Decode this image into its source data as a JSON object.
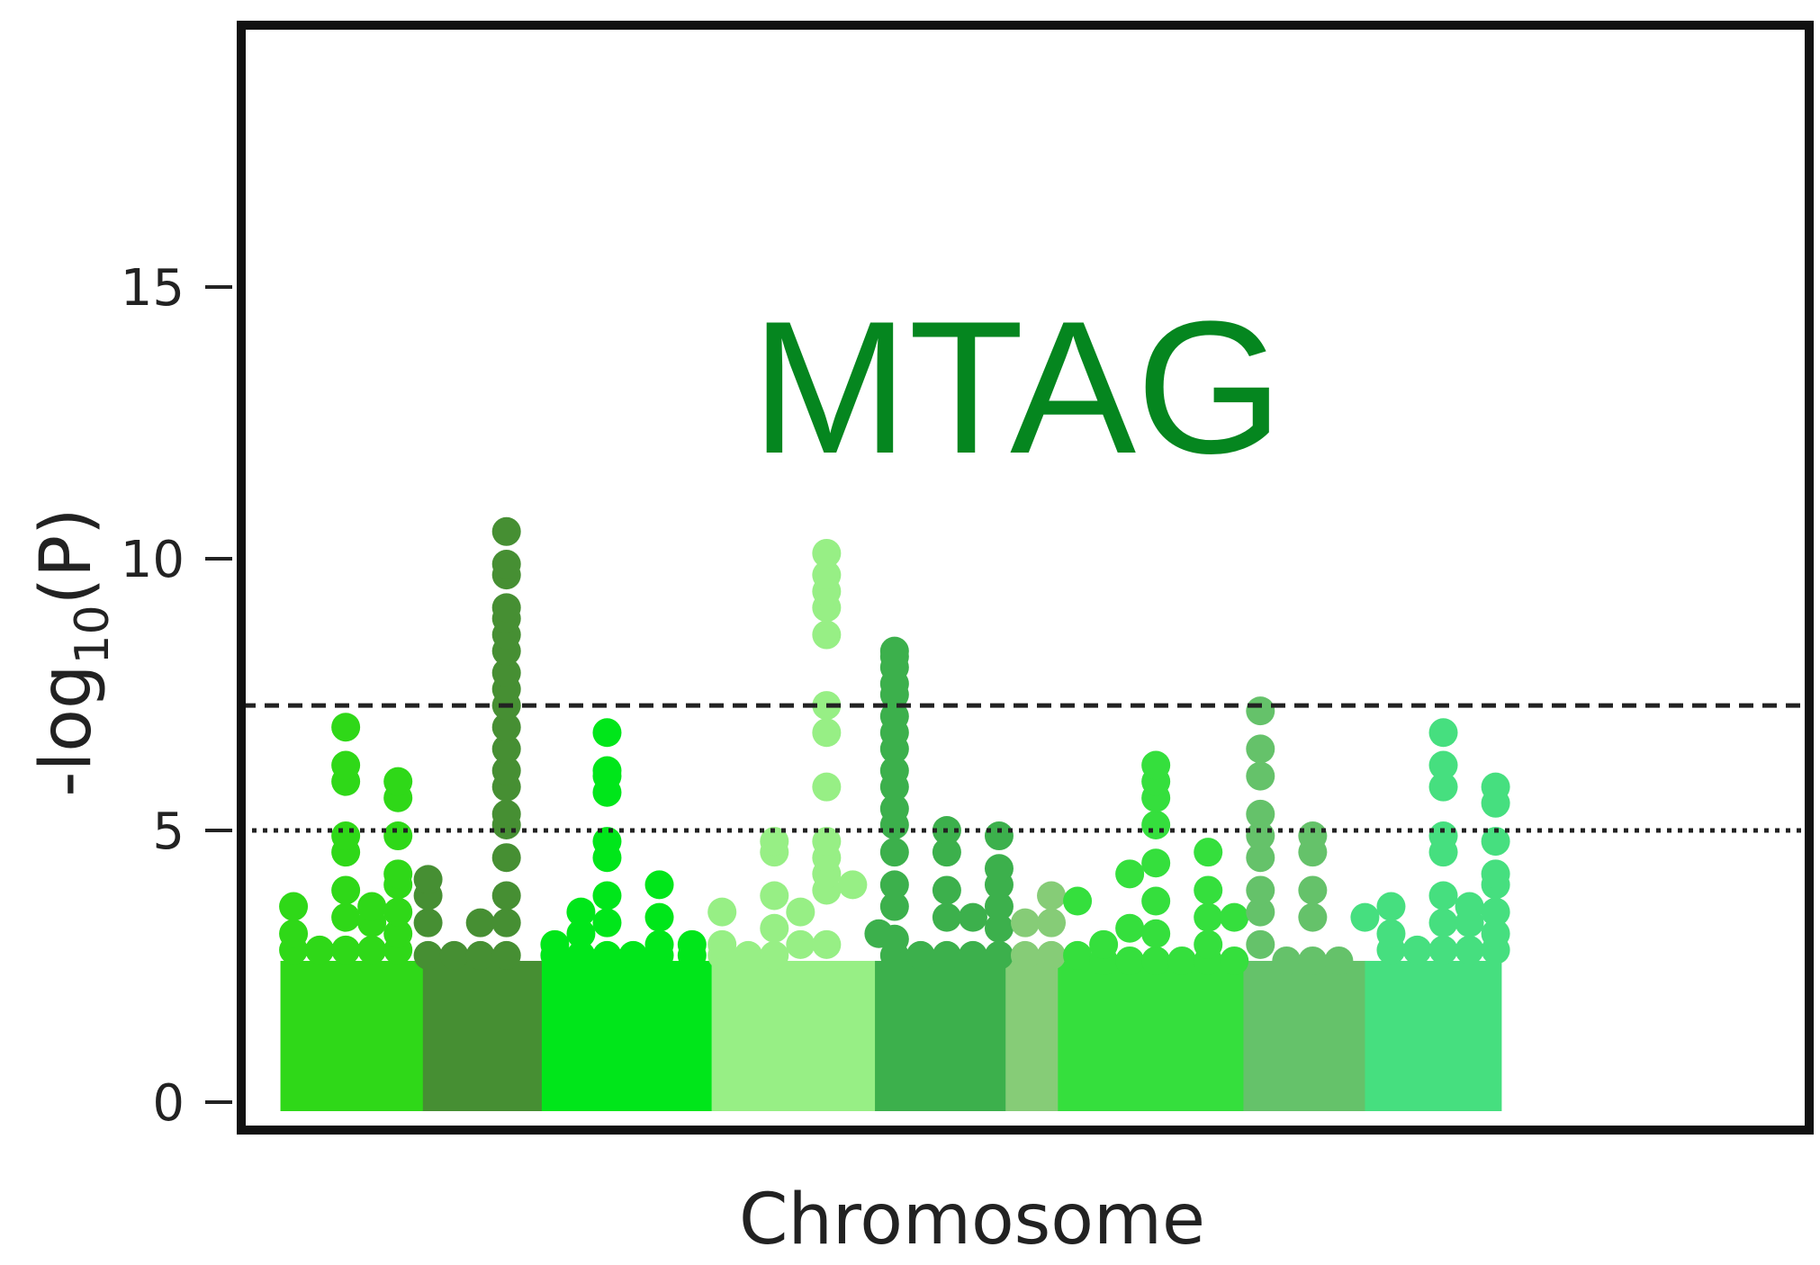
{
  "chart_data": {
    "type": "scatter",
    "title": "MTAG",
    "xlabel": "Chromosome",
    "ylabel": {
      "prefix": "-log",
      "subscript": "10",
      "suffix": "(P)"
    },
    "ylim": [
      0,
      19
    ],
    "yticks": [
      0,
      5,
      10,
      15
    ],
    "thresholds": [
      {
        "value": 7.3,
        "style": "dashed"
      },
      {
        "value": 5.0,
        "style": "dotted"
      }
    ],
    "legend": "none",
    "grid": false,
    "xlim": [
      0,
      12.0
    ],
    "block_top": 2.6,
    "blocks": [
      {
        "start": 0.3,
        "end": 1.39,
        "color": "#2fd818"
      },
      {
        "start": 1.39,
        "end": 2.3,
        "color": "#468f33"
      },
      {
        "start": 2.3,
        "end": 3.6,
        "color": "#00e61a"
      },
      {
        "start": 3.6,
        "end": 4.85,
        "color": "#97ef85"
      },
      {
        "start": 4.85,
        "end": 5.85,
        "color": "#3cb04c"
      },
      {
        "start": 5.85,
        "end": 6.25,
        "color": "#86cc77"
      },
      {
        "start": 6.25,
        "end": 7.67,
        "color": "#35df3d"
      },
      {
        "start": 7.67,
        "end": 8.6,
        "color": "#65c26a"
      },
      {
        "start": 8.6,
        "end": 9.64,
        "color": "#46df7f"
      }
    ],
    "points": [
      {
        "x": 0.4,
        "y": [
          2.8,
          3.1,
          3.6
        ]
      },
      {
        "x": 0.6,
        "y": [
          2.8
        ]
      },
      {
        "x": 0.8,
        "y": [
          2.8,
          3.4,
          3.9,
          4.6,
          4.9,
          5.9,
          6.2,
          6.9
        ]
      },
      {
        "x": 1.0,
        "y": [
          2.8,
          3.3,
          3.6
        ]
      },
      {
        "x": 1.2,
        "y": [
          2.8,
          3.1,
          3.5,
          4.0,
          4.2,
          4.9,
          5.6,
          5.9
        ]
      },
      {
        "x": 1.43,
        "y": [
          2.7,
          3.3,
          3.8,
          4.1
        ]
      },
      {
        "x": 1.63,
        "y": [
          2.7
        ]
      },
      {
        "x": 1.83,
        "y": [
          2.7,
          3.3
        ]
      },
      {
        "x": 2.03,
        "y": [
          2.7,
          3.3,
          3.8,
          4.5,
          5.1,
          5.3,
          5.8,
          6.1,
          6.5,
          6.9,
          7.3,
          7.6,
          7.9,
          8.3,
          8.6,
          8.9,
          9.1,
          9.7,
          9.9,
          10.5
        ]
      },
      {
        "x": 2.4,
        "y": [
          2.7,
          2.9
        ]
      },
      {
        "x": 2.6,
        "y": [
          2.7,
          3.1,
          3.5
        ]
      },
      {
        "x": 2.8,
        "y": [
          2.7,
          3.3,
          3.8,
          4.5,
          4.8,
          5.7,
          6.0,
          6.1,
          6.8
        ]
      },
      {
        "x": 3.0,
        "y": [
          2.7
        ]
      },
      {
        "x": 3.2,
        "y": [
          2.7,
          2.9,
          3.4,
          4.0
        ]
      },
      {
        "x": 3.45,
        "y": [
          2.7,
          2.9
        ]
      },
      {
        "x": 3.68,
        "y": [
          2.7,
          2.9,
          3.5
        ]
      },
      {
        "x": 3.88,
        "y": [
          2.7
        ]
      },
      {
        "x": 4.08,
        "y": [
          2.7,
          3.2,
          3.8,
          4.6,
          4.8
        ]
      },
      {
        "x": 4.28,
        "y": [
          2.9,
          3.5
        ]
      },
      {
        "x": 4.48,
        "y": [
          2.9,
          3.9,
          4.2,
          4.5,
          4.8,
          5.8,
          6.8,
          7.3,
          8.6,
          9.1,
          9.4,
          9.7,
          10.1
        ]
      },
      {
        "x": 4.68,
        "y": [
          4.0
        ]
      },
      {
        "x": 4.88,
        "y": [
          3.1
        ]
      },
      {
        "x": 5.0,
        "y": [
          2.7,
          3.0,
          3.6,
          4.0,
          4.6,
          5.1,
          5.4,
          5.8,
          6.1,
          6.5,
          6.8,
          7.1,
          7.5,
          7.7,
          8.0,
          8.2,
          8.3
        ]
      },
      {
        "x": 5.2,
        "y": [
          2.7
        ]
      },
      {
        "x": 5.4,
        "y": [
          2.7,
          3.4,
          3.9,
          4.6,
          5.0
        ]
      },
      {
        "x": 5.6,
        "y": [
          2.7,
          3.4
        ]
      },
      {
        "x": 5.8,
        "y": [
          2.7,
          3.2,
          3.6,
          4.0,
          4.3,
          4.9
        ]
      },
      {
        "x": 6.0,
        "y": [
          2.7,
          3.3
        ]
      },
      {
        "x": 6.2,
        "y": [
          2.7,
          3.3,
          3.8
        ]
      },
      {
        "x": 6.4,
        "y": [
          2.7,
          3.7
        ]
      },
      {
        "x": 6.6,
        "y": [
          2.6,
          2.9
        ]
      },
      {
        "x": 6.8,
        "y": [
          2.6,
          3.2,
          4.2
        ]
      },
      {
        "x": 7.0,
        "y": [
          2.6,
          3.1,
          3.7,
          4.4,
          5.1,
          5.6,
          5.9,
          6.2
        ]
      },
      {
        "x": 7.2,
        "y": [
          2.6
        ]
      },
      {
        "x": 7.4,
        "y": [
          2.6,
          2.9,
          3.4,
          3.9,
          4.6
        ]
      },
      {
        "x": 7.6,
        "y": [
          2.6,
          3.4
        ]
      },
      {
        "x": 7.8,
        "y": [
          2.9,
          3.5,
          3.9,
          4.5,
          4.9,
          5.3,
          6.0,
          6.5,
          7.2
        ]
      },
      {
        "x": 8.0,
        "y": [
          2.6
        ]
      },
      {
        "x": 8.2,
        "y": [
          2.6,
          3.4,
          3.9,
          4.6,
          4.9
        ]
      },
      {
        "x": 8.4,
        "y": [
          2.6
        ]
      },
      {
        "x": 8.6,
        "y": [
          3.4
        ]
      },
      {
        "x": 8.8,
        "y": [
          2.8,
          3.1,
          3.6
        ]
      },
      {
        "x": 9.0,
        "y": [
          2.8
        ]
      },
      {
        "x": 9.2,
        "y": [
          2.8,
          3.3,
          3.8,
          4.6,
          4.9,
          5.8,
          6.2,
          6.8
        ]
      },
      {
        "x": 9.4,
        "y": [
          2.8,
          3.3,
          3.6
        ]
      },
      {
        "x": 9.6,
        "y": [
          2.8,
          3.1,
          3.5,
          4.0,
          4.2,
          4.8,
          5.5,
          5.8
        ]
      }
    ],
    "point_colors": {
      "0": "#2fd818",
      "1": "#468f33",
      "2": "#00e61a",
      "3": "#97ef85",
      "4": "#3cb04c",
      "5": "#86cc77",
      "6": "#35df3d",
      "7": "#65c26a",
      "8": "#46df7f"
    },
    "title_color": "#05861f",
    "frame_color": "#111111"
  }
}
